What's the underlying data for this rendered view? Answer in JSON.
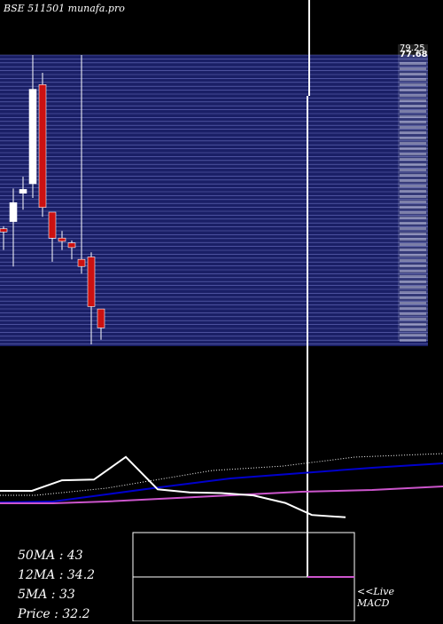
{
  "header": {
    "title": "BSE 511501 munafa.pro"
  },
  "colors": {
    "background": "#000000",
    "price_band": "#1a1f66",
    "grid_line": "#6a70c0",
    "bull_candle": "#ffffff",
    "bear_candle": "#cc1111",
    "ma_fast": "#ffffff",
    "ma_mid": "#0000cc",
    "ma_slow": "#cc55cc",
    "dotted": "#ffffff"
  },
  "price_axis": {
    "top_label": "79.25",
    "second_label": "77.68"
  },
  "stats": {
    "ma50": "50MA : 43",
    "ma12": "12MA : 34.2",
    "ma5": "5MA : 33",
    "price": "Price   : 32.2"
  },
  "macd": {
    "line1": "<<Live",
    "line2": "MACD"
  },
  "chart_data": {
    "type": "candlestick",
    "title": "BSE 511501 munafa.pro",
    "candles": [
      {
        "open": 42.5,
        "close": 41.8,
        "high": 43.0,
        "low": 38.0
      },
      {
        "open": 44.0,
        "close": 48.0,
        "high": 51.0,
        "low": 34.5
      },
      {
        "open": 50.0,
        "close": 50.8,
        "high": 53.5,
        "low": 46.5
      },
      {
        "open": 52.0,
        "close": 72.0,
        "high": 79.25,
        "low": 49.0
      },
      {
        "open": 73.0,
        "close": 47.0,
        "high": 75.5,
        "low": 45.0
      },
      {
        "open": 46.0,
        "close": 40.5,
        "high": 46.0,
        "low": 35.5
      },
      {
        "open": 40.5,
        "close": 39.8,
        "high": 42.0,
        "low": 38.0
      },
      {
        "open": 39.5,
        "close": 38.5,
        "high": 40.0,
        "low": 36.0
      },
      {
        "open": 36.0,
        "close": 34.5,
        "high": 79.25,
        "low": 33.0
      },
      {
        "open": 36.5,
        "close": 26.0,
        "high": 37.5,
        "low": 18.0
      },
      {
        "open": 25.5,
        "close": 21.5,
        "high": 25.5,
        "low": 19.0
      }
    ],
    "moving_averages": {
      "ma50": 43,
      "ma12": 34.2,
      "ma5": 33
    },
    "price": 32.2,
    "indicator_line": [
      {
        "x": 0,
        "y": 0
      },
      {
        "x": 1,
        "y": 0
      },
      {
        "x": 2,
        "y": 1.4
      },
      {
        "x": 3,
        "y": 1.5
      },
      {
        "x": 4,
        "y": 4.5
      },
      {
        "x": 5,
        "y": 0.2
      },
      {
        "x": 6,
        "y": -0.2
      },
      {
        "x": 7,
        "y": -0.3
      },
      {
        "x": 8,
        "y": -0.6
      },
      {
        "x": 9,
        "y": -1.6
      },
      {
        "x": 10,
        "y": -3.2
      },
      {
        "x": 11,
        "y": -3.5
      }
    ]
  }
}
